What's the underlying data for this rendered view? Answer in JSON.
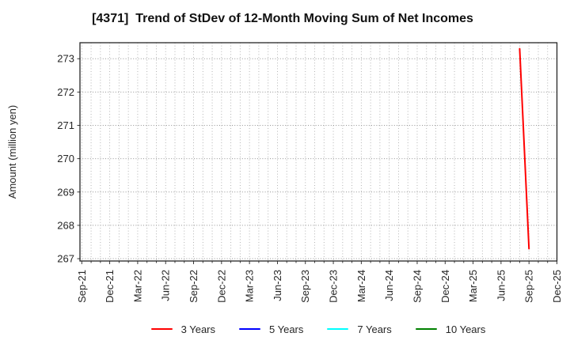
{
  "chart_data": {
    "type": "line",
    "title": "[4371]  Trend of StDev of 12-Month Moving Sum of Net Incomes",
    "ylabel": "Amount (million yen)",
    "xlabel": "",
    "ylim": [
      266.93,
      273.48
    ],
    "y_ticks": [
      267,
      268,
      269,
      270,
      271,
      272,
      273
    ],
    "x_tick_labels": [
      "Sep-21",
      "Dec-21",
      "Mar-22",
      "Jun-22",
      "Sep-22",
      "Dec-22",
      "Mar-23",
      "Jun-23",
      "Sep-23",
      "Dec-23",
      "Mar-24",
      "Jun-24",
      "Sep-24",
      "Dec-24",
      "Mar-25",
      "Jun-25",
      "Sep-25",
      "Dec-25"
    ],
    "months_per_tick": 3,
    "grid": true,
    "legend_position": "bottom",
    "series": [
      {
        "name": "3 Years",
        "color": "#ff0000",
        "points": [
          [
            "Aug-25",
            273.3
          ],
          [
            "Sep-25",
            267.3
          ]
        ]
      },
      {
        "name": "5 Years",
        "color": "#0000ff",
        "points": []
      },
      {
        "name": "7 Years",
        "color": "#00ffff",
        "points": []
      },
      {
        "name": "10 Years",
        "color": "#008000",
        "points": []
      }
    ],
    "colors": {
      "plot_border": "#262626",
      "grid_h": "#949494",
      "grid_v": "#ababab",
      "tick_text": "#262626",
      "title_text": "#111111"
    }
  }
}
